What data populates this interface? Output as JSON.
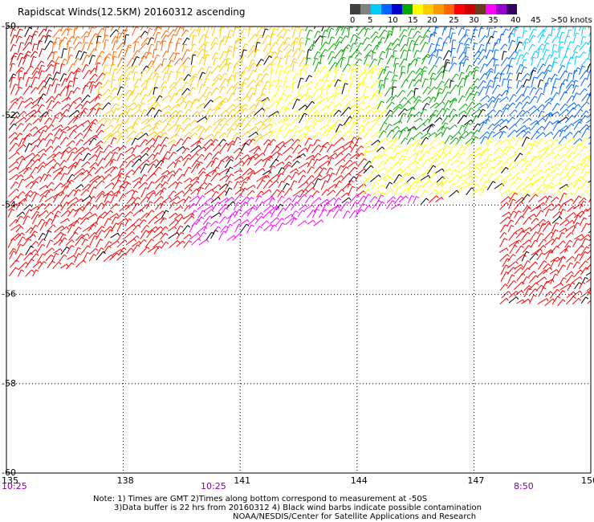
{
  "title": "Rapidscat Winds(12.5KM) 20160312 ascending",
  "legend": {
    "colors": [
      "#404040",
      "#808080",
      "#00ccff",
      "#0066ff",
      "#0000cc",
      "#00aa00",
      "#ffff00",
      "#ffcc00",
      "#ff9900",
      "#ff6600",
      "#ff0000",
      "#cc0000",
      "#6b3a1a",
      "#ff00ff",
      "#9900cc",
      "#330066"
    ],
    "labels": [
      "0",
      "5",
      "10",
      "15",
      "20",
      "25",
      "30",
      "35",
      "40",
      "45",
      ">50 knots"
    ]
  },
  "axes": {
    "lon_labels": [
      "135",
      "138",
      "141",
      "144",
      "147",
      "150"
    ],
    "lat_labels": [
      "-50",
      "-52",
      "-54",
      "-56",
      "-58",
      "-60"
    ]
  },
  "time_labels": [
    "10:25",
    "10:25",
    "8:50"
  ],
  "notes": [
    "Note: 1) Times are GMT 2)Times along bottom correspond to measurement at -50S",
    "3)Data buffer is 22 hrs from 20160312 4) Black wind barbs indicate possible contamination",
    "NOAA/NESDIS/Center for Satellite Applications and Research"
  ]
}
